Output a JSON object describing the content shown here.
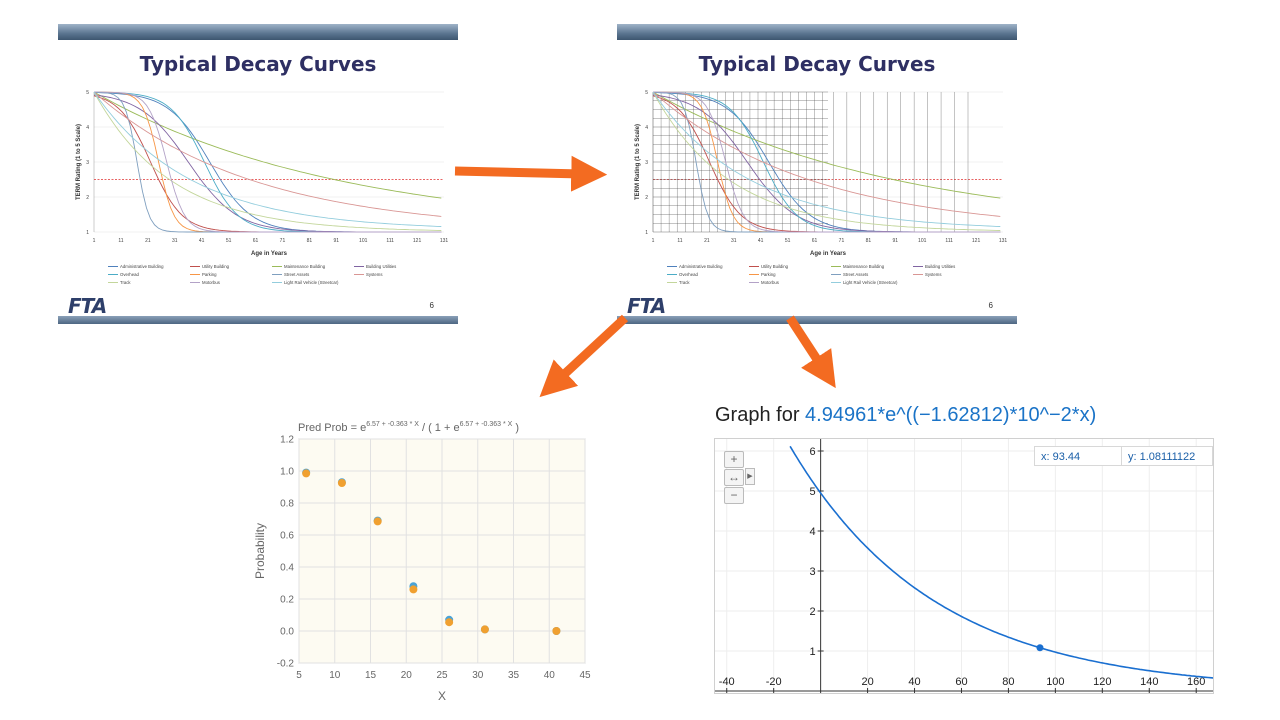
{
  "slides": [
    {
      "title": "Typical Decay Curves",
      "logo": "FTA",
      "page": "6"
    },
    {
      "title": "Typical Decay Curves",
      "logo": "FTA",
      "page": "6"
    }
  ],
  "decay_chart": {
    "ylabel": "TERM Rating (1 to 5 Scale)",
    "xlabel": "Age in Years",
    "yticks": [
      "1",
      "2",
      "3",
      "4",
      "5"
    ],
    "xticks": [
      "1",
      "11",
      "21",
      "31",
      "41",
      "51",
      "61",
      "71",
      "81",
      "91",
      "101",
      "111",
      "121",
      "131"
    ],
    "threshold": 2.5,
    "legend": [
      {
        "name": "Administrative Building",
        "color": "#4f81bd"
      },
      {
        "name": "Utility Building",
        "color": "#c0504d"
      },
      {
        "name": "Maintenance Building",
        "color": "#9bbb59"
      },
      {
        "name": "Building Utilities",
        "color": "#8064a2"
      },
      {
        "name": "Overhead",
        "color": "#4bacc6"
      },
      {
        "name": "Parking",
        "color": "#f79646"
      },
      {
        "name": "Street Assets",
        "color": "#7f9fbf"
      },
      {
        "name": "Systems",
        "color": "#d99694"
      },
      {
        "name": "Track",
        "color": "#c3d69b"
      },
      {
        "name": "Motorbus",
        "color": "#b3a2c7"
      },
      {
        "name": "Light Rail Vehicle (Streetcar)",
        "color": "#93cddd"
      }
    ]
  },
  "logistic_chart": {
    "title_prefix": "Pred Prob = e",
    "title_exp": "6.57 + -0.363 * X",
    "title_mid": " / ( 1 + e",
    "title_exp2": "6.57 + -0.363 * X",
    "title_suffix": " )",
    "xlabel": "X",
    "ylabel": "Probability",
    "xticks": [
      "5",
      "10",
      "15",
      "20",
      "25",
      "30",
      "35",
      "40",
      "45"
    ],
    "yticks": [
      "1.2",
      "1.0",
      "0.8",
      "0.6",
      "0.4",
      "0.2",
      "0.0",
      "-0.2"
    ],
    "colors": {
      "observed": "#4aa3d8",
      "predicted": "#f0a030"
    }
  },
  "graph": {
    "title_prefix": "Graph for ",
    "equation": "4.94961*e^((−1.62812)*10^−2*x)",
    "readout_x": "x: 93.44",
    "readout_y": "y: 1.08111122",
    "xticks": [
      "-40",
      "-20",
      "20",
      "40",
      "60",
      "80",
      "100",
      "120",
      "140",
      "160"
    ],
    "yticks": [
      "1",
      "2",
      "3",
      "4",
      "5",
      "6"
    ],
    "curve_color": "#1a6fd0",
    "point": {
      "x": 93.44,
      "y": 1.08111122
    }
  },
  "chart_data": [
    {
      "type": "scatter",
      "title": "Pred Prob = e^(6.57 + -0.363 * X) / ( 1 + e^(6.57 + -0.363 * X) )",
      "xlabel": "X",
      "ylabel": "Probability",
      "xlim": [
        5,
        45
      ],
      "ylim": [
        -0.2,
        1.2
      ],
      "series": [
        {
          "values": [
            [
              6,
              0.99
            ],
            [
              11,
              0.93
            ],
            [
              16,
              0.69
            ],
            [
              21,
              0.28
            ],
            [
              26,
              0.07
            ],
            [
              31,
              0.01
            ],
            [
              41,
              0.0
            ]
          ]
        },
        {
          "values": [
            [
              6,
              0.985
            ],
            [
              11,
              0.925
            ],
            [
              16,
              0.685
            ],
            [
              21,
              0.26
            ],
            [
              26,
              0.055
            ],
            [
              31,
              0.01
            ],
            [
              41,
              0.0
            ]
          ]
        }
      ]
    },
    {
      "type": "line",
      "title": "Graph for 4.94961*e^((−1.62812)*10^−2*x)",
      "xlim": [
        -45,
        168
      ],
      "ylim": [
        0,
        6.2
      ],
      "function": {
        "a": 4.94961,
        "k": -0.0162812
      },
      "point": {
        "x": 93.44,
        "y": 1.08111122
      }
    }
  ]
}
